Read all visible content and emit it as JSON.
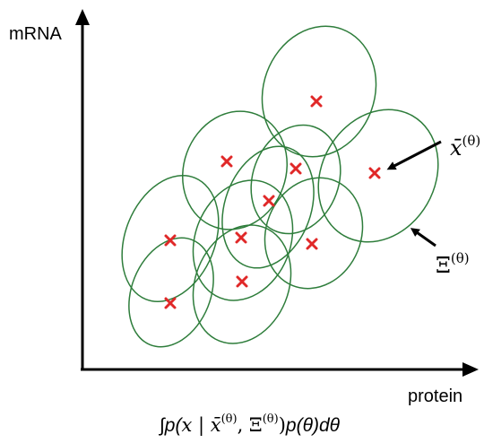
{
  "axes": {
    "y_label": "mRNA",
    "x_label": "protein"
  },
  "annotations": {
    "mean_label": {
      "base": "x̄",
      "sup": "(θ)"
    },
    "cov_label": {
      "base": "Ξ",
      "sup": "(θ)"
    }
  },
  "formula": {
    "integral": "∫",
    "p1": "p(",
    "x": "x",
    "bar": " | ",
    "xbar": "x̄",
    "sup1": "(θ)",
    "comma": ", ",
    "xi": "Ξ",
    "sup2": "(θ)",
    "close": ")",
    "p2": "p(θ)dθ"
  },
  "colors": {
    "ellipse": "#2e7d3b",
    "cross": "#e02828",
    "axis": "#000000"
  }
}
